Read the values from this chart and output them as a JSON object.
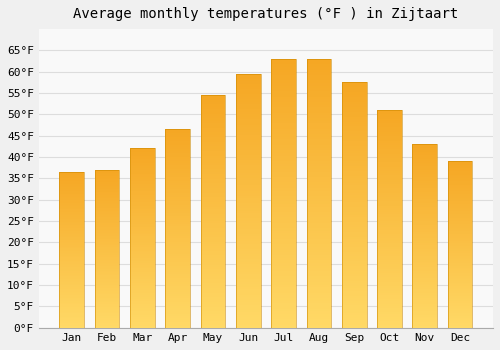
{
  "title": "Average monthly temperatures (°F ) in Zijtaart",
  "months": [
    "Jan",
    "Feb",
    "Mar",
    "Apr",
    "May",
    "Jun",
    "Jul",
    "Aug",
    "Sep",
    "Oct",
    "Nov",
    "Dec"
  ],
  "values": [
    36.5,
    37.0,
    42.0,
    46.5,
    54.5,
    59.5,
    63.0,
    63.0,
    57.5,
    51.0,
    43.0,
    39.0
  ],
  "bar_color_top": "#F5A623",
  "bar_color_bottom": "#FFD966",
  "ylim": [
    0,
    70
  ],
  "yticks": [
    0,
    5,
    10,
    15,
    20,
    25,
    30,
    35,
    40,
    45,
    50,
    55,
    60,
    65
  ],
  "background_color": "#f0f0f0",
  "plot_bg_color": "#f9f9f9",
  "grid_color": "#dddddd",
  "title_fontsize": 10,
  "tick_fontsize": 8,
  "bar_width": 0.7,
  "n_grad": 100
}
